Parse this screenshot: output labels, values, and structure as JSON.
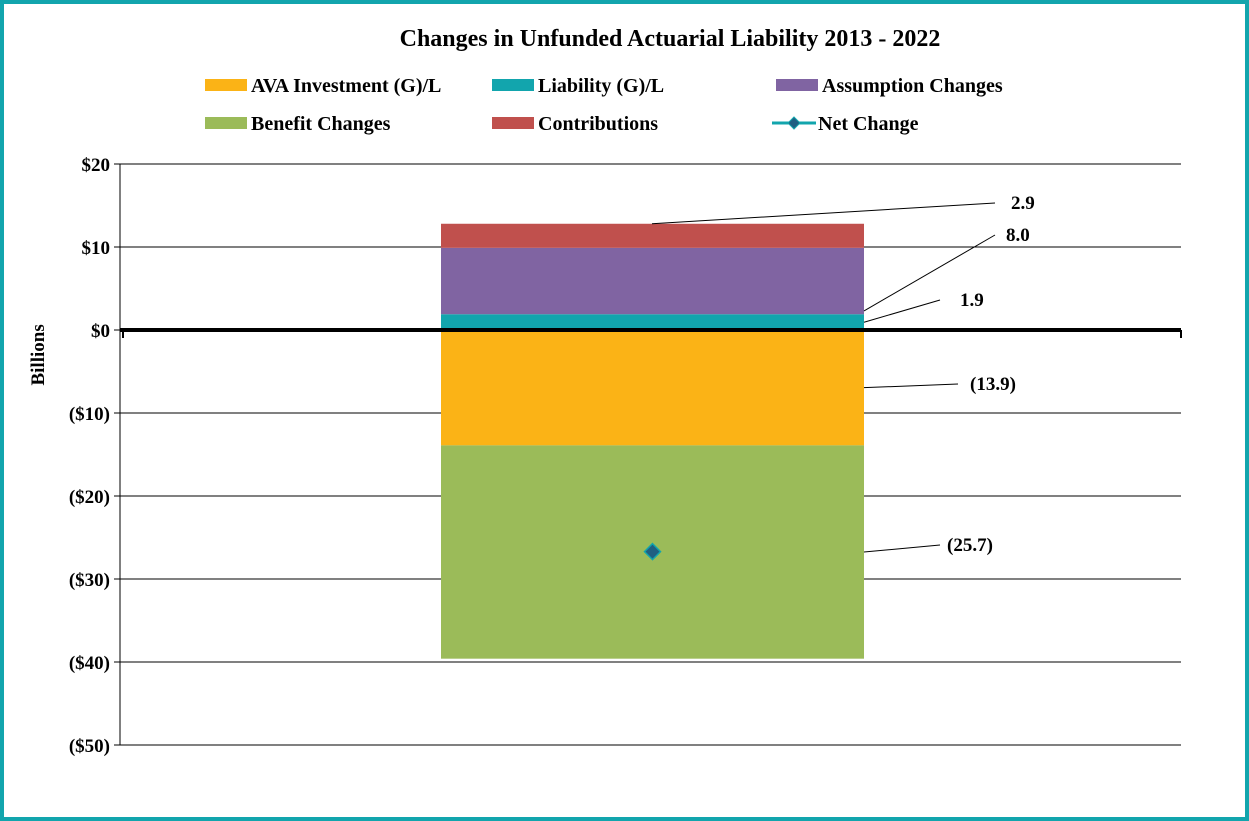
{
  "chart_data": {
    "type": "bar",
    "title": "Changes in Unfunded Actuarial Liability 2013 - 2022",
    "ylabel": "Billions",
    "ylim": [
      -50,
      20
    ],
    "y_ticks": [
      20,
      10,
      0,
      -10,
      -20,
      -30,
      -40,
      -50
    ],
    "y_tick_labels": [
      "$20",
      "$10",
      "$0",
      "($10)",
      "($20)",
      "($30)",
      "($40)",
      "($50)"
    ],
    "grid": true,
    "legend_position": "top",
    "series": [
      {
        "name": "AVA Investment (G)/L",
        "value": -13.9,
        "color": "#fbb316",
        "label": "(13.9)",
        "legend_marker": "rect"
      },
      {
        "name": "Liability (G)/L",
        "value": 1.9,
        "color": "#12a5ad",
        "label": "1.9",
        "legend_marker": "rect"
      },
      {
        "name": "Assumption Changes",
        "value": 8.0,
        "color": "#8064a2",
        "label": "8.0",
        "legend_marker": "rect"
      },
      {
        "name": "Benefit Changes",
        "value": -25.7,
        "color": "#9bbb59",
        "label": "(25.7)",
        "legend_marker": "rect"
      },
      {
        "name": "Contributions",
        "value": 2.9,
        "color": "#c0504d",
        "label": "2.9",
        "legend_marker": "rect"
      },
      {
        "name": "Net Change",
        "value": -26.7,
        "color": "#12a5ad",
        "marker_fill": "#1f5f82",
        "label": "",
        "legend_marker": "line-diamond",
        "kind": "marker"
      }
    ]
  }
}
